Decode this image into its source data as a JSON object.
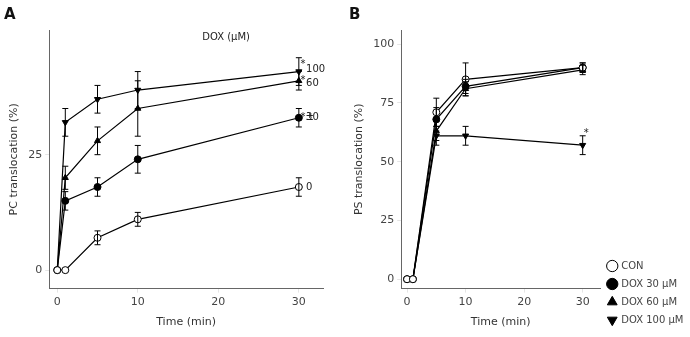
{
  "chart_data": [
    {
      "type": "line",
      "title": "A",
      "xlabel": "Time (min)",
      "ylabel": "PC translocation (%)",
      "xlim": [
        -1,
        33
      ],
      "ylim": [
        -4,
        52
      ],
      "xticks": [
        0,
        10,
        20,
        30
      ],
      "yticks": [
        0,
        25
      ],
      "grid": false,
      "series": [
        {
          "x": [
            0,
            1,
            5,
            10,
            30
          ],
          "values": [
            0,
            0,
            7,
            11,
            18
          ],
          "yerr": [
            0,
            0,
            1.5,
            1.5,
            2
          ],
          "color": "black",
          "marker": "circle-open",
          "line_style": "solid"
        },
        {
          "x": [
            0,
            1,
            5,
            10,
            30
          ],
          "values": [
            0,
            15,
            18,
            24,
            33
          ],
          "yerr": [
            0,
            2,
            2,
            3,
            2
          ],
          "color": "black",
          "marker": "circle",
          "line_style": "solid"
        },
        {
          "x": [
            0,
            1,
            5,
            10,
            30
          ],
          "values": [
            0,
            20,
            28,
            35,
            41
          ],
          "yerr": [
            0,
            2.5,
            3,
            6,
            2
          ],
          "color": "black",
          "marker": "triangle",
          "line_style": "solid"
        },
        {
          "x": [
            0,
            1,
            5,
            10,
            30
          ],
          "values": [
            0,
            32,
            37,
            39,
            43
          ],
          "yerr": [
            0,
            3,
            3,
            4,
            3
          ],
          "color": "black",
          "marker": "triangle-down",
          "line_style": "solid"
        }
      ],
      "annotations": [
        {
          "text": "DOX (μM)",
          "x": 18,
          "y": 50.5
        },
        {
          "text": "*",
          "x": 30.2,
          "y": 44.5
        },
        {
          "text": "100",
          "x": 30.9,
          "y": 43.5
        },
        {
          "text": "*",
          "x": 30.2,
          "y": 41
        },
        {
          "text": "60",
          "x": 30.9,
          "y": 40.5
        },
        {
          "text": "*±",
          "x": 30.2,
          "y": 33
        },
        {
          "text": "30",
          "x": 30.9,
          "y": 33
        },
        {
          "text": "0",
          "x": 30.9,
          "y": 18
        }
      ]
    },
    {
      "type": "line",
      "title": "B",
      "xlabel": "Time (min)",
      "ylabel": "PS translocation (%)",
      "xlim": [
        -1,
        33
      ],
      "ylim": [
        -4,
        106
      ],
      "xticks": [
        0,
        10,
        20,
        30
      ],
      "yticks": [
        0,
        25,
        50,
        75,
        100
      ],
      "grid": false,
      "legend": "lower right",
      "series": [
        {
          "name": "CON",
          "x": [
            0,
            1,
            5,
            10,
            30
          ],
          "values": [
            0,
            0,
            71,
            85,
            90
          ],
          "yerr": [
            0,
            0,
            6,
            7,
            2
          ],
          "color": "black",
          "marker": "circle-open",
          "line_style": "solid"
        },
        {
          "name": "DOX 30 μM",
          "x": [
            0,
            1,
            5,
            10,
            30
          ],
          "values": [
            0,
            0,
            68,
            82,
            90
          ],
          "yerr": [
            0,
            0,
            5,
            3,
            2
          ],
          "color": "black",
          "marker": "circle",
          "line_style": "solid"
        },
        {
          "name": "DOX 60 μM",
          "x": [
            0,
            1,
            5,
            10,
            30
          ],
          "values": [
            0,
            0,
            63,
            81,
            89
          ],
          "yerr": [
            0,
            0,
            4,
            3,
            2
          ],
          "color": "black",
          "marker": "triangle",
          "line_style": "solid"
        },
        {
          "name": "DOX 100 μM",
          "x": [
            0,
            1,
            5,
            10,
            30
          ],
          "values": [
            0,
            0,
            61,
            61,
            57
          ],
          "yerr": [
            0,
            0,
            4,
            4,
            4
          ],
          "color": "black",
          "marker": "triangle-down",
          "line_style": "solid"
        }
      ],
      "annotations": [
        {
          "text": "*",
          "x": 30.2,
          "y": 62
        }
      ]
    }
  ]
}
